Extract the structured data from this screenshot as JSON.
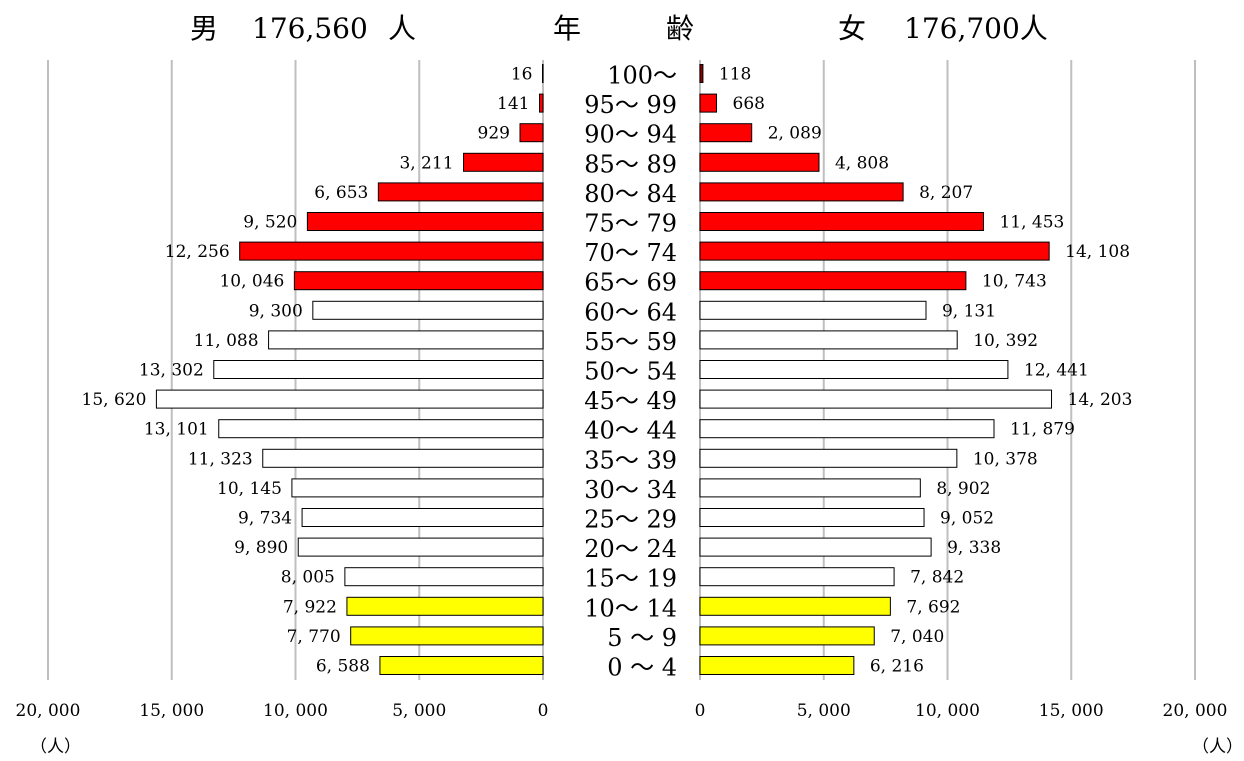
{
  "chart_data": {
    "type": "bar",
    "title": {
      "male_label": "男",
      "male_total": "176,560",
      "male_unit": "人",
      "center_label_1": "年",
      "center_label_2": "齢",
      "female_label": "女",
      "female_total": "176,700人"
    },
    "age_groups": [
      "100～",
      "95～ 99",
      "90～ 94",
      "85～ 89",
      "80～ 84",
      "75～ 79",
      "70～ 74",
      "65～ 69",
      "60～ 64",
      "55～ 59",
      "50～ 54",
      "45～ 49",
      "40～ 44",
      "35～ 39",
      "30～ 34",
      "25～ 29",
      "20～ 24",
      "15～ 19",
      "10～ 14",
      "5 ～ 9",
      "0 ～ 4"
    ],
    "series": [
      {
        "name": "男",
        "values": [
          16,
          141,
          929,
          3211,
          6653,
          9520,
          12256,
          10046,
          9300,
          11088,
          13302,
          15620,
          13101,
          11323,
          10145,
          9734,
          9890,
          8005,
          7922,
          7770,
          6588
        ],
        "labels": [
          "16",
          "141",
          "929",
          "3, 211",
          "6, 653",
          "9, 520",
          "12, 256",
          "10, 046",
          "9, 300",
          "11, 088",
          "13, 302",
          "15, 620",
          "13, 101",
          "11, 323",
          "10, 145",
          "9, 734",
          "9, 890",
          "8, 005",
          "7, 922",
          "7, 770",
          "6, 588"
        ]
      },
      {
        "name": "女",
        "values": [
          118,
          668,
          2089,
          4808,
          8207,
          11453,
          14108,
          10743,
          9131,
          10392,
          12441,
          14203,
          11879,
          10378,
          8902,
          9052,
          9338,
          7842,
          7692,
          7040,
          6216
        ],
        "labels": [
          "118",
          "668",
          "2, 089",
          "4, 808",
          "8, 207",
          "11, 453",
          "14, 108",
          "10, 743",
          "9, 131",
          "10, 392",
          "12, 441",
          "14, 203",
          "11, 879",
          "10, 378",
          "8, 902",
          "9, 052",
          "9, 338",
          "7, 842",
          "7, 692",
          "7, 040",
          "6, 216"
        ]
      }
    ],
    "group_colors": [
      "#8b0000",
      "#ff0000",
      "#ff0000",
      "#ff0000",
      "#ff0000",
      "#ff0000",
      "#ff0000",
      "#ff0000",
      "#ffffff",
      "#ffffff",
      "#ffffff",
      "#ffffff",
      "#ffffff",
      "#ffffff",
      "#ffffff",
      "#ffffff",
      "#ffffff",
      "#ffffff",
      "#ffff00",
      "#ffff00",
      "#ffff00"
    ],
    "x_ticks": [
      0,
      5000,
      10000,
      15000,
      20000
    ],
    "x_tick_labels_male": [
      "0",
      "5, 000",
      "10, 000",
      "15, 000",
      "20, 000"
    ],
    "x_tick_labels_female": [
      "0",
      "5, 000",
      "10, 000",
      "15, 000",
      "20, 000"
    ],
    "xlim": [
      0,
      20000
    ],
    "unit_label": "（人）",
    "grid": true
  }
}
